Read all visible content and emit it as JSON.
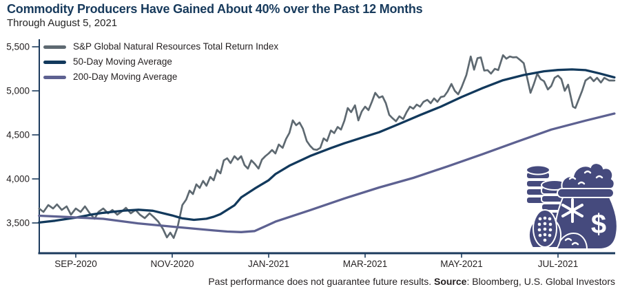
{
  "footer": {
    "disclaimer": "Past performance does not guarantee future results. ",
    "source_label": "Source",
    "source_rest": ": Bloomberg, U.S. Global Investors"
  },
  "icon": {
    "name": "commodities-money-bag",
    "color": "#454a7d"
  },
  "chart_data": {
    "type": "line",
    "title": "Commodity Producers Have Gained About 40% over the Past 12 Months",
    "subtitle": "Through August 5, 2021",
    "axis_color": "#1b3a5c",
    "tick_text_color": "#231f20",
    "grid": false,
    "legend_position": "top-left-inside",
    "x_axis": {
      "unit": "months since 2020-08-01 (1 = Sep 1 2020)",
      "range": [
        0.24,
        12.17
      ],
      "ticks": [
        {
          "m": 1,
          "label": "SEP-2020"
        },
        {
          "m": 3,
          "label": "NOV-2020"
        },
        {
          "m": 5,
          "label": "JAN-2021"
        },
        {
          "m": 7,
          "label": "MAR-2021"
        },
        {
          "m": 9,
          "label": "MAY-2021"
        },
        {
          "m": 11,
          "label": "JUL-2021"
        }
      ]
    },
    "y_axis": {
      "range": [
        3150,
        5560
      ],
      "ticks": [
        3500,
        4000,
        4500,
        5000,
        5500
      ],
      "tick_labels": [
        "3,500",
        "4,000",
        "4,500",
        "5,000",
        "5,500"
      ]
    },
    "series": [
      {
        "name": "S&P Global Natural Resources Total Return Index",
        "slug": "sp-gnr-index",
        "color": "#5e6971",
        "width": 2.7,
        "points": [
          [
            0.24,
            3664
          ],
          [
            0.33,
            3625
          ],
          [
            0.43,
            3703
          ],
          [
            0.53,
            3664
          ],
          [
            0.61,
            3711
          ],
          [
            0.71,
            3648
          ],
          [
            0.81,
            3688
          ],
          [
            0.9,
            3594
          ],
          [
            1.0,
            3664
          ],
          [
            1.1,
            3625
          ],
          [
            1.19,
            3688
          ],
          [
            1.29,
            3609
          ],
          [
            1.39,
            3547
          ],
          [
            1.47,
            3625
          ],
          [
            1.57,
            3664
          ],
          [
            1.67,
            3609
          ],
          [
            1.76,
            3648
          ],
          [
            1.86,
            3594
          ],
          [
            1.96,
            3633
          ],
          [
            2.04,
            3672
          ],
          [
            2.14,
            3609
          ],
          [
            2.24,
            3648
          ],
          [
            2.33,
            3594
          ],
          [
            2.43,
            3555
          ],
          [
            2.53,
            3609
          ],
          [
            2.61,
            3570
          ],
          [
            2.71,
            3516
          ],
          [
            2.81,
            3430
          ],
          [
            2.89,
            3336
          ],
          [
            2.96,
            3390
          ],
          [
            3.03,
            3330
          ],
          [
            3.11,
            3450
          ],
          [
            3.21,
            3703
          ],
          [
            3.29,
            3766
          ],
          [
            3.36,
            3867
          ],
          [
            3.43,
            3828
          ],
          [
            3.5,
            3938
          ],
          [
            3.57,
            3898
          ],
          [
            3.64,
            3977
          ],
          [
            3.71,
            3922
          ],
          [
            3.79,
            4023
          ],
          [
            3.86,
            3984
          ],
          [
            3.93,
            4102
          ],
          [
            4.0,
            4063
          ],
          [
            4.07,
            4211
          ],
          [
            4.14,
            4234
          ],
          [
            4.21,
            4180
          ],
          [
            4.29,
            4258
          ],
          [
            4.36,
            4219
          ],
          [
            4.43,
            4258
          ],
          [
            4.5,
            4156
          ],
          [
            4.57,
            4117
          ],
          [
            4.64,
            4211
          ],
          [
            4.71,
            4172
          ],
          [
            4.79,
            4117
          ],
          [
            4.86,
            4219
          ],
          [
            4.93,
            4258
          ],
          [
            5.0,
            4289
          ],
          [
            5.07,
            4328
          ],
          [
            5.14,
            4289
          ],
          [
            5.21,
            4391
          ],
          [
            5.29,
            4352
          ],
          [
            5.36,
            4453
          ],
          [
            5.43,
            4523
          ],
          [
            5.5,
            4665
          ],
          [
            5.57,
            4609
          ],
          [
            5.64,
            4641
          ],
          [
            5.71,
            4570
          ],
          [
            5.79,
            4430
          ],
          [
            5.86,
            4375
          ],
          [
            5.93,
            4336
          ],
          [
            6.0,
            4330
          ],
          [
            6.07,
            4352
          ],
          [
            6.14,
            4460
          ],
          [
            6.21,
            4430
          ],
          [
            6.29,
            4550
          ],
          [
            6.36,
            4520
          ],
          [
            6.43,
            4590
          ],
          [
            6.5,
            4560
          ],
          [
            6.57,
            4660
          ],
          [
            6.64,
            4805
          ],
          [
            6.71,
            4758
          ],
          [
            6.79,
            4836
          ],
          [
            6.86,
            4664
          ],
          [
            6.93,
            4766
          ],
          [
            7.0,
            4820
          ],
          [
            7.07,
            4781
          ],
          [
            7.14,
            4875
          ],
          [
            7.21,
            4977
          ],
          [
            7.29,
            4922
          ],
          [
            7.36,
            4938
          ],
          [
            7.43,
            4859
          ],
          [
            7.5,
            4727
          ],
          [
            7.57,
            4688
          ],
          [
            7.64,
            4655
          ],
          [
            7.71,
            4711
          ],
          [
            7.79,
            4680
          ],
          [
            7.86,
            4758
          ],
          [
            7.93,
            4820
          ],
          [
            8.0,
            4797
          ],
          [
            8.07,
            4844
          ],
          [
            8.14,
            4820
          ],
          [
            8.21,
            4875
          ],
          [
            8.29,
            4898
          ],
          [
            8.36,
            4859
          ],
          [
            8.43,
            4914
          ],
          [
            8.5,
            4875
          ],
          [
            8.57,
            4930
          ],
          [
            8.64,
            4938
          ],
          [
            8.71,
            4992
          ],
          [
            8.79,
            5078
          ],
          [
            8.86,
            5000
          ],
          [
            8.93,
            4961
          ],
          [
            9.0,
            5039
          ],
          [
            9.1,
            5180
          ],
          [
            9.19,
            5390
          ],
          [
            9.26,
            5240
          ],
          [
            9.33,
            5370
          ],
          [
            9.4,
            5380
          ],
          [
            9.47,
            5230
          ],
          [
            9.54,
            5235
          ],
          [
            9.61,
            5195
          ],
          [
            9.69,
            5250
          ],
          [
            9.76,
            5235
          ],
          [
            9.86,
            5405
          ],
          [
            9.93,
            5365
          ],
          [
            10.0,
            5390
          ],
          [
            10.07,
            5380
          ],
          [
            10.14,
            5383
          ],
          [
            10.21,
            5352
          ],
          [
            10.29,
            5313
          ],
          [
            10.36,
            5148
          ],
          [
            10.43,
            4977
          ],
          [
            10.5,
            5078
          ],
          [
            10.57,
            5195
          ],
          [
            10.64,
            5133
          ],
          [
            10.71,
            5109
          ],
          [
            10.79,
            5016
          ],
          [
            10.86,
            5055
          ],
          [
            10.93,
            5148
          ],
          [
            11.0,
            5172
          ],
          [
            11.07,
            5133
          ],
          [
            11.14,
            5000
          ],
          [
            11.21,
            5070
          ],
          [
            11.31,
            4820
          ],
          [
            11.36,
            4805
          ],
          [
            11.5,
            5000
          ],
          [
            11.57,
            5117
          ],
          [
            11.67,
            5156
          ],
          [
            11.74,
            5109
          ],
          [
            11.81,
            5148
          ],
          [
            11.89,
            5094
          ],
          [
            11.96,
            5148
          ],
          [
            12.06,
            5117
          ],
          [
            12.17,
            5117
          ]
        ]
      },
      {
        "name": "50-Day Moving Average",
        "slug": "ma-50-day",
        "color": "#12395c",
        "width": 3.3,
        "points": [
          [
            0.24,
            3505
          ],
          [
            0.57,
            3525
          ],
          [
            1.0,
            3560
          ],
          [
            1.33,
            3595
          ],
          [
            1.57,
            3615
          ],
          [
            2.0,
            3640
          ],
          [
            2.3,
            3650
          ],
          [
            2.6,
            3638
          ],
          [
            3.0,
            3585
          ],
          [
            3.2,
            3553
          ],
          [
            3.45,
            3535
          ],
          [
            3.71,
            3548
          ],
          [
            3.86,
            3570
          ],
          [
            4.0,
            3600
          ],
          [
            4.29,
            3700
          ],
          [
            4.43,
            3790
          ],
          [
            4.71,
            3890
          ],
          [
            5.0,
            3985
          ],
          [
            5.14,
            4055
          ],
          [
            5.43,
            4150
          ],
          [
            5.86,
            4260
          ],
          [
            6.29,
            4350
          ],
          [
            6.57,
            4405
          ],
          [
            7.0,
            4480
          ],
          [
            7.29,
            4530
          ],
          [
            7.71,
            4625
          ],
          [
            8.14,
            4725
          ],
          [
            8.57,
            4820
          ],
          [
            9.0,
            4930
          ],
          [
            9.43,
            5030
          ],
          [
            9.86,
            5120
          ],
          [
            10.29,
            5180
          ],
          [
            10.71,
            5222
          ],
          [
            11.0,
            5237
          ],
          [
            11.29,
            5243
          ],
          [
            11.57,
            5235
          ],
          [
            11.86,
            5198
          ],
          [
            12.17,
            5152
          ]
        ]
      },
      {
        "name": "200-Day Moving Average",
        "slug": "ma-200-day",
        "color": "#5d6191",
        "width": 3.3,
        "points": [
          [
            0.24,
            3582
          ],
          [
            0.8,
            3568
          ],
          [
            1.57,
            3547
          ],
          [
            2.29,
            3495
          ],
          [
            3.0,
            3458
          ],
          [
            3.86,
            3415
          ],
          [
            4.14,
            3402
          ],
          [
            4.43,
            3396
          ],
          [
            4.71,
            3408
          ],
          [
            5.14,
            3515
          ],
          [
            5.86,
            3645
          ],
          [
            6.57,
            3778
          ],
          [
            7.29,
            3902
          ],
          [
            8.0,
            4012
          ],
          [
            8.71,
            4142
          ],
          [
            9.43,
            4280
          ],
          [
            10.14,
            4420
          ],
          [
            10.86,
            4560
          ],
          [
            11.57,
            4662
          ],
          [
            12.17,
            4742
          ]
        ]
      }
    ]
  }
}
